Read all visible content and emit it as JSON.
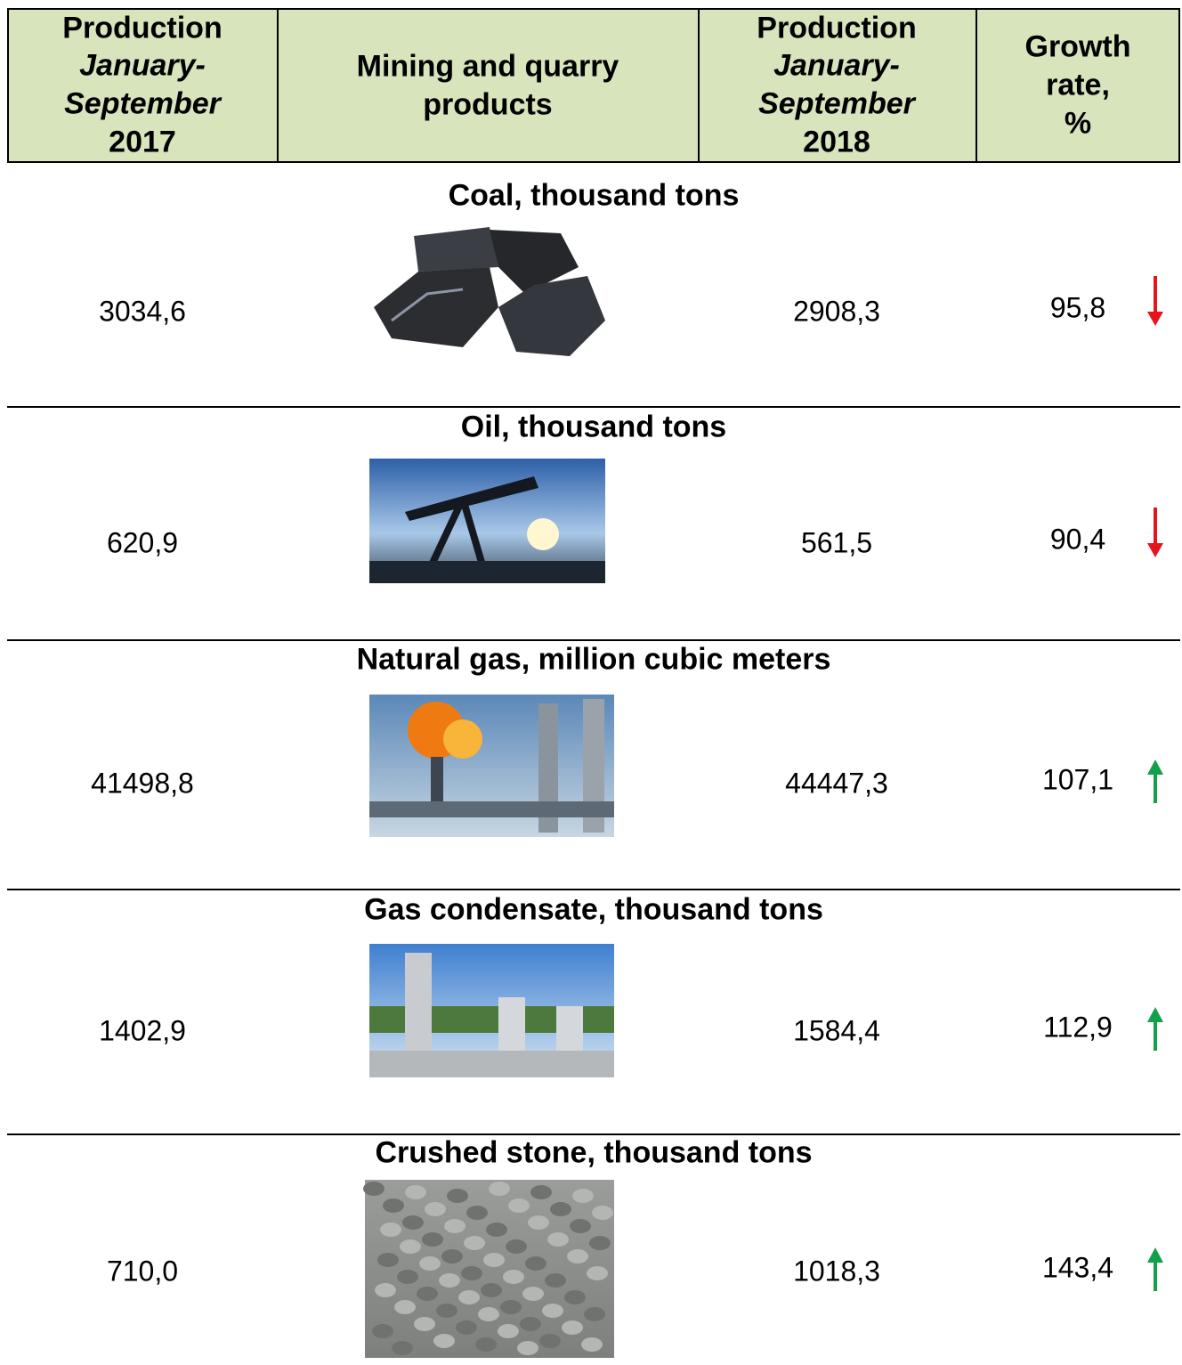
{
  "header": {
    "columns": [
      {
        "lines": [
          "Production",
          "January-",
          "September",
          "2017"
        ]
      },
      {
        "lines": [
          "Mining and quarry",
          "products"
        ]
      },
      {
        "lines": [
          "Production",
          "January-",
          "September",
          "2018"
        ]
      },
      {
        "lines": [
          "Growth",
          "rate,",
          "%"
        ]
      }
    ]
  },
  "sections": [
    {
      "title": "Coal, thousand tons",
      "value_2017": "3034,6",
      "value_2018": "2908,3",
      "growth": "95,8"
    },
    {
      "title": "Oil, thousand tons",
      "value_2017": "620,9",
      "value_2018": "561,5",
      "growth": "90,4"
    },
    {
      "title": "Natural gas, million cubic meters",
      "value_2017": "41498,8",
      "value_2018": "44447,3",
      "growth": "107,1"
    },
    {
      "title": "Gas condensate, thousand tons",
      "value_2017": "1402,9",
      "value_2018": "1584,4",
      "growth": "112,9"
    },
    {
      "title": "Crushed stone, thousand tons",
      "value_2017": "710,0",
      "value_2018": "1018,3",
      "growth": "143,4"
    }
  ]
}
